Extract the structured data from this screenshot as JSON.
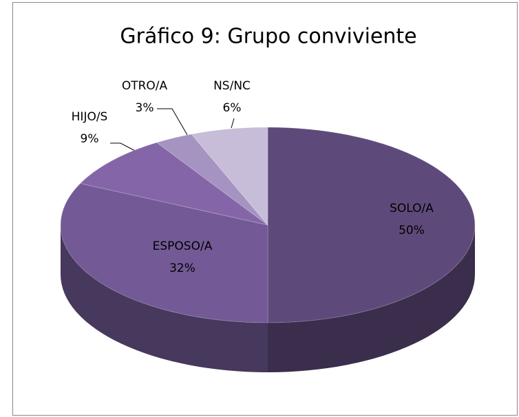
{
  "chart_data": {
    "type": "pie",
    "title": "Gráfico 9: Grupo conviviente",
    "categories": [
      "SOLO/A",
      "ESPOSO/A",
      "HIJO/S",
      "OTRO/A",
      "NS/NC"
    ],
    "values": [
      50,
      32,
      9,
      3,
      6
    ],
    "value_labels": [
      "50%",
      "32%",
      "9%",
      "3%",
      "6%"
    ],
    "colors": [
      "#5e4a7a",
      "#735a96",
      "#8466a8",
      "#a593c1",
      "#c7bdd8"
    ]
  }
}
